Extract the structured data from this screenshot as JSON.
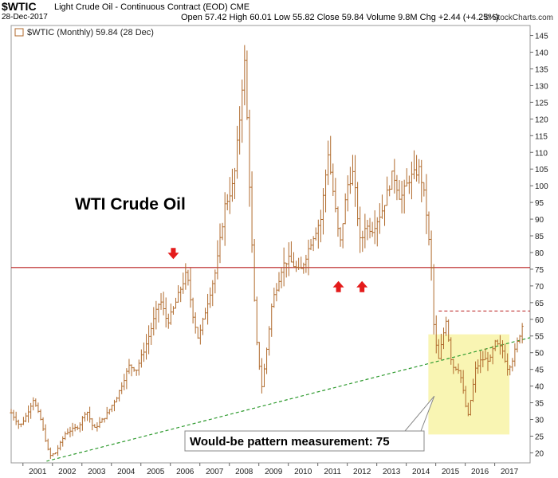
{
  "header": {
    "symbol": "$WTIC",
    "description": "Light Crude Oil - Continuous Contract (EOD) CME",
    "date": "28-Dec-2017",
    "stats": "Open 57.42  High 60.01  Low 55.82  Close 59.84  Volume 9.8M  Chg +2.44 (+4.25%)",
    "brand": "© StockCharts.com"
  },
  "colors": {
    "price": "#b06a2c",
    "resistance": "#b81c1c",
    "trend": "#2e9a2e",
    "box": "#f7f3a0",
    "arrow": "#e41b1b"
  },
  "chart_data": {
    "type": "ohlc",
    "legend": "$WTIC (Monthly) 59.84 (28 Dec)",
    "annotation_title": "WTI Crude Oil",
    "callout": "Would-be pattern measurement: 75",
    "ylim": [
      17,
      148
    ],
    "xlim": [
      2000.6,
      2018.2
    ],
    "y_ticks": [
      20,
      25,
      30,
      35,
      40,
      45,
      50,
      55,
      60,
      65,
      70,
      75,
      80,
      85,
      90,
      95,
      100,
      105,
      110,
      115,
      120,
      125,
      130,
      135,
      140,
      145
    ],
    "x_ticks": [
      "2001",
      "2002",
      "2003",
      "2004",
      "2005",
      "2006",
      "2007",
      "2008",
      "2009",
      "2010",
      "2011",
      "2012",
      "2013",
      "2014",
      "2015",
      "2016",
      "2017"
    ],
    "resistance_level": 75.5,
    "dashed_level": 62.5,
    "dashed_level_start": 2015.1,
    "trendline": [
      [
        2001.8,
        17.5
      ],
      [
        2018.2,
        54.5
      ]
    ],
    "box": {
      "x0": 2014.75,
      "x1": 2017.5,
      "y0": 25.5,
      "y1": 55.5
    },
    "arrows": [
      {
        "x": 2006.1,
        "y": 78.5,
        "dir": "down"
      },
      {
        "x": 2011.7,
        "y": 71.0,
        "dir": "up"
      },
      {
        "x": 2012.5,
        "y": 71.0,
        "dir": "up"
      }
    ],
    "anchors": [
      [
        2000.6,
        32
      ],
      [
        2000.9,
        28
      ],
      [
        2001.1,
        31
      ],
      [
        2001.35,
        36
      ],
      [
        2001.6,
        30
      ],
      [
        2001.9,
        19
      ],
      [
        2002.1,
        20
      ],
      [
        2002.45,
        26
      ],
      [
        2002.9,
        28
      ],
      [
        2003.15,
        33
      ],
      [
        2003.4,
        27
      ],
      [
        2003.8,
        31
      ],
      [
        2004.2,
        37
      ],
      [
        2004.6,
        46
      ],
      [
        2004.85,
        45
      ],
      [
        2005.2,
        53
      ],
      [
        2005.65,
        66
      ],
      [
        2005.9,
        59
      ],
      [
        2006.1,
        63
      ],
      [
        2006.3,
        68
      ],
      [
        2006.55,
        74
      ],
      [
        2006.75,
        62
      ],
      [
        2006.95,
        54
      ],
      [
        2007.2,
        63
      ],
      [
        2007.55,
        75
      ],
      [
        2007.85,
        94
      ],
      [
        2008.15,
        101
      ],
      [
        2008.4,
        125
      ],
      [
        2008.5,
        140
      ],
      [
        2008.6,
        120
      ],
      [
        2008.75,
        85
      ],
      [
        2008.9,
        55
      ],
      [
        2009.1,
        40
      ],
      [
        2009.2,
        46
      ],
      [
        2009.45,
        65
      ],
      [
        2009.8,
        76
      ],
      [
        2010.0,
        78
      ],
      [
        2010.4,
        74
      ],
      [
        2010.8,
        84
      ],
      [
        2011.1,
        90
      ],
      [
        2011.35,
        110
      ],
      [
        2011.55,
        96
      ],
      [
        2011.75,
        82
      ],
      [
        2012.0,
        100
      ],
      [
        2012.2,
        104
      ],
      [
        2012.45,
        82
      ],
      [
        2012.6,
        88
      ],
      [
        2012.85,
        87
      ],
      [
        2013.2,
        93
      ],
      [
        2013.55,
        104
      ],
      [
        2013.8,
        96
      ],
      [
        2014.1,
        102
      ],
      [
        2014.45,
        105
      ],
      [
        2014.65,
        95
      ],
      [
        2014.85,
        75
      ],
      [
        2014.95,
        55
      ],
      [
        2015.1,
        48
      ],
      [
        2015.35,
        60
      ],
      [
        2015.55,
        46
      ],
      [
        2015.8,
        45
      ],
      [
        2016.0,
        35
      ],
      [
        2016.08,
        30
      ],
      [
        2016.35,
        45
      ],
      [
        2016.55,
        48
      ],
      [
        2016.85,
        48
      ],
      [
        2017.0,
        53
      ],
      [
        2017.25,
        51
      ],
      [
        2017.45,
        45
      ],
      [
        2017.6,
        48
      ],
      [
        2017.8,
        54
      ],
      [
        2017.99,
        59.8
      ]
    ],
    "grid": false
  }
}
